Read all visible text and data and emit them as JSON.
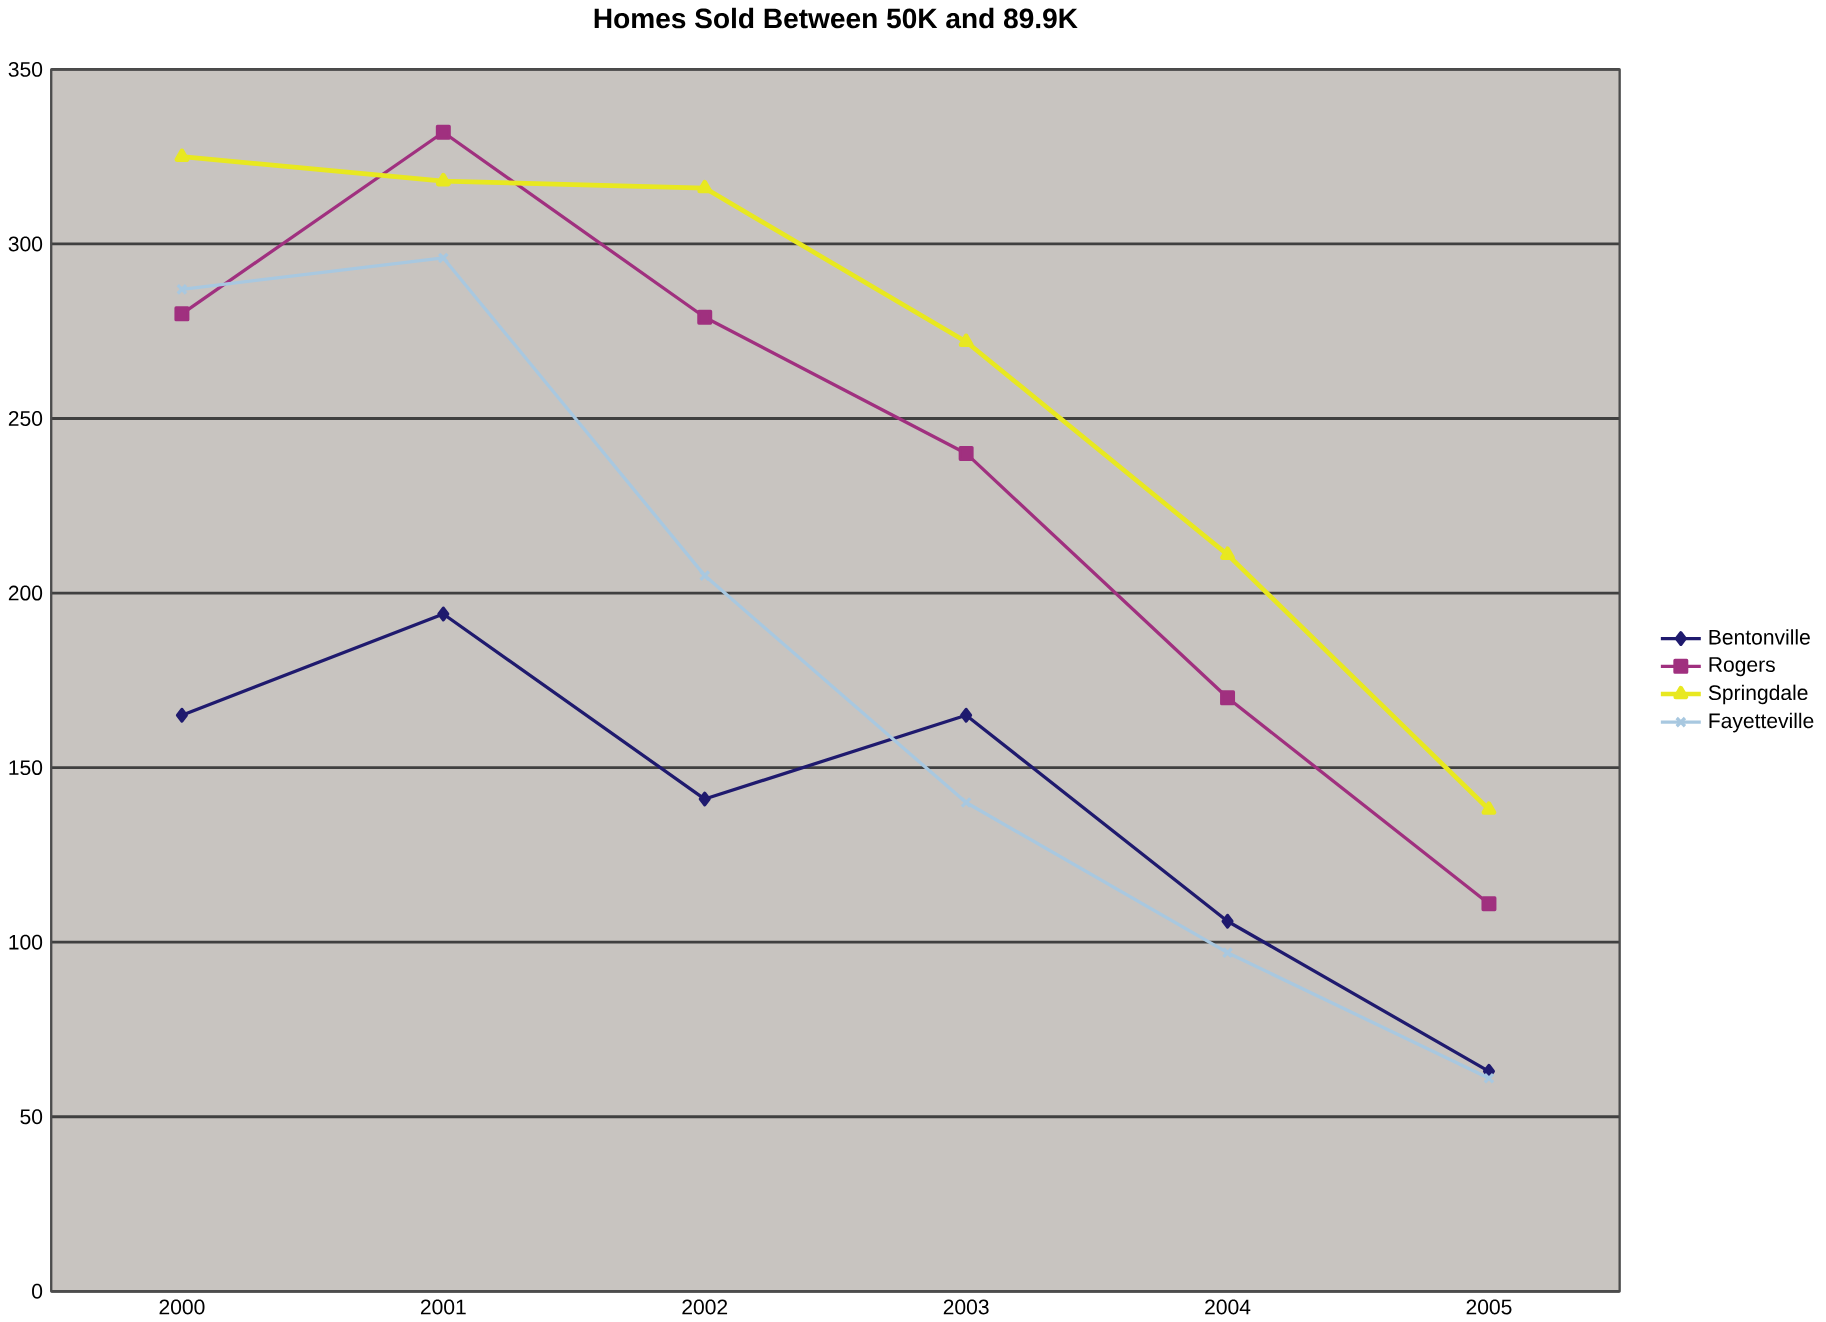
{
  "chart_data": {
    "type": "line",
    "title": "Homes Sold Between 50K and 89.9K",
    "categories": [
      "2000",
      "2001",
      "2002",
      "2003",
      "2004",
      "2005"
    ],
    "series": [
      {
        "name": "Bentonville",
        "color": "#1f1a6e",
        "marker": "diamond",
        "values": [
          165,
          194,
          141,
          165,
          106,
          63
        ]
      },
      {
        "name": "Rogers",
        "color": "#a0307f",
        "marker": "square",
        "values": [
          280,
          332,
          279,
          240,
          170,
          111
        ]
      },
      {
        "name": "Springdale",
        "color": "#e8e820",
        "marker": "triangle",
        "values": [
          325,
          318,
          316,
          272,
          211,
          138
        ]
      },
      {
        "name": "Fayetteville",
        "color": "#a8c8e0",
        "marker": "cross",
        "values": [
          287,
          296,
          205,
          140,
          97,
          61
        ]
      }
    ],
    "ylim": [
      0,
      350
    ],
    "yticks": [
      0,
      50,
      100,
      150,
      200,
      250,
      300,
      350
    ],
    "grid": "y",
    "legend": "right"
  }
}
